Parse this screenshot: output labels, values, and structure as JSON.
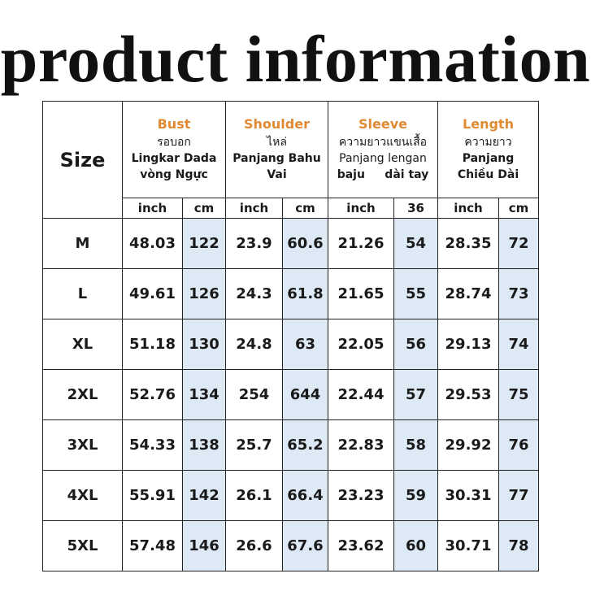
{
  "title": "product information",
  "table": {
    "size_header": "Size",
    "categories": [
      {
        "name": "Bust",
        "lines": [
          "รอบอก",
          "Lingkar Dada",
          "vòng Ngực"
        ]
      },
      {
        "name": "Shoulder",
        "lines": [
          "ไหล่",
          "Panjang Bahu",
          "Vai"
        ]
      },
      {
        "name": "Sleeve",
        "lines": [
          "ความยาวแขนเสื้อ",
          "Panjang lengan",
          "baju     dài tay"
        ]
      },
      {
        "name": "Length",
        "lines": [
          "ความยาว",
          "Panjang",
          "Chiều Dài"
        ]
      }
    ],
    "units": [
      "inch",
      "cm",
      "inch",
      "cm",
      "inch",
      "36",
      "inch",
      "cm"
    ],
    "rows": [
      {
        "size": "M",
        "values": [
          "48.03",
          "122",
          "23.9",
          "60.6",
          "21.26",
          "54",
          "28.35",
          "72"
        ]
      },
      {
        "size": "L",
        "values": [
          "49.61",
          "126",
          "24.3",
          "61.8",
          "21.65",
          "55",
          "28.74",
          "73"
        ]
      },
      {
        "size": "XL",
        "values": [
          "51.18",
          "130",
          "24.8",
          "63",
          "22.05",
          "56",
          "29.13",
          "74"
        ]
      },
      {
        "size": "2XL",
        "values": [
          "52.76",
          "134",
          "254",
          "644",
          "22.44",
          "57",
          "29.53",
          "75"
        ]
      },
      {
        "size": "3XL",
        "values": [
          "54.33",
          "138",
          "25.7",
          "65.2",
          "22.83",
          "58",
          "29.92",
          "76"
        ]
      },
      {
        "size": "4XL",
        "values": [
          "55.91",
          "142",
          "26.1",
          "66.4",
          "23.23",
          "59",
          "30.31",
          "77"
        ]
      },
      {
        "size": "5XL",
        "values": [
          "57.48",
          "146",
          "26.6",
          "67.6",
          "23.62",
          "60",
          "30.71",
          "78"
        ]
      }
    ]
  },
  "colors": {
    "category_title": "#e08a33",
    "cm_column_fill": "#dde9f5",
    "border": "#222222"
  }
}
